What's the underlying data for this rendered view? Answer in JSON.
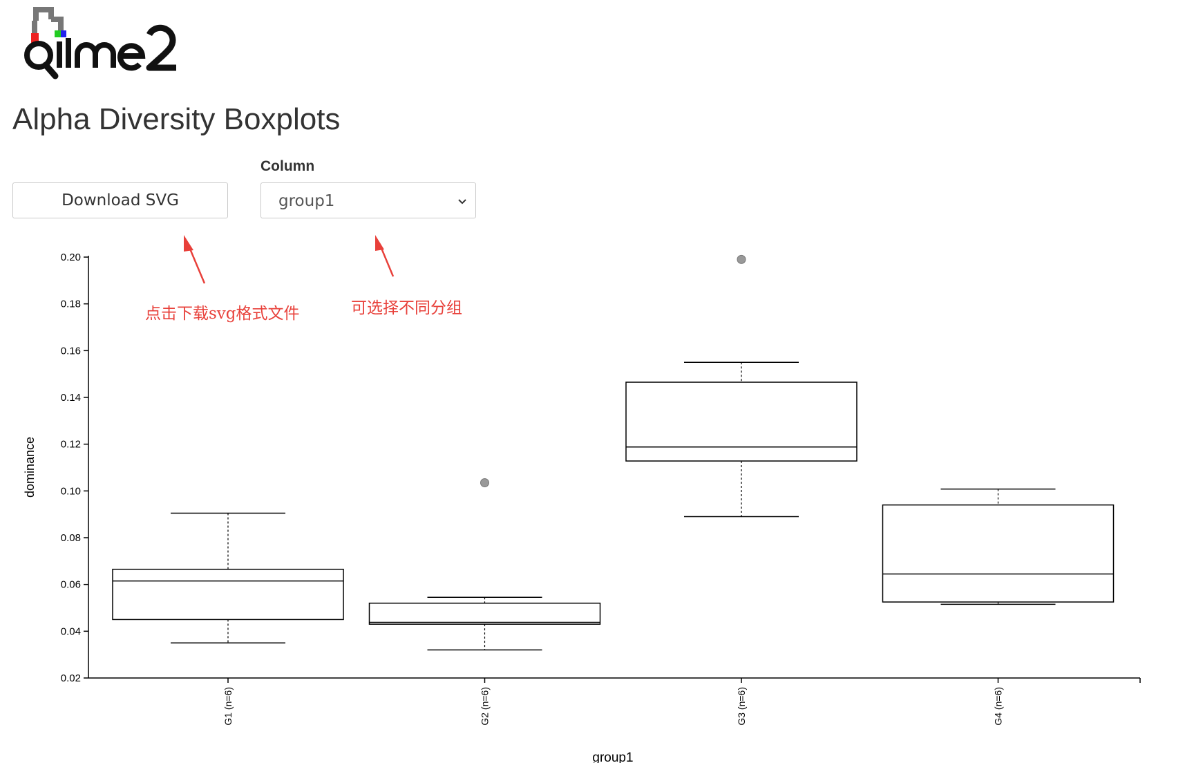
{
  "header": {
    "logo_text": "qiime2",
    "title": "Alpha Diversity Boxplots"
  },
  "controls": {
    "download_label": "Download SVG",
    "column_label": "Column",
    "column_value": "group1"
  },
  "annotations": {
    "download_note": "点击下载svg格式文件",
    "select_note": "可选择不同分组",
    "color": "#e8403a"
  },
  "chart_data": {
    "type": "boxplot",
    "xlabel": "group1",
    "ylabel": "dominance",
    "ylim": [
      0.02,
      0.2
    ],
    "yticks": [
      "0.20",
      "0.18",
      "0.16",
      "0.14",
      "0.12",
      "0.10",
      "0.08",
      "0.06",
      "0.04",
      "0.02"
    ],
    "groups": [
      {
        "label": "G1 (n=6)",
        "whisker_low": 0.035,
        "q1": 0.045,
        "median": 0.0615,
        "q3": 0.0665,
        "whisker_high": 0.0905,
        "outliers": []
      },
      {
        "label": "G2 (n=6)",
        "whisker_low": 0.032,
        "q1": 0.043,
        "median": 0.0438,
        "q3": 0.052,
        "whisker_high": 0.0545,
        "outliers": [
          0.1035
        ]
      },
      {
        "label": "G3 (n=6)",
        "whisker_low": 0.089,
        "q1": 0.1128,
        "median": 0.1188,
        "q3": 0.1465,
        "whisker_high": 0.155,
        "outliers": [
          0.199
        ]
      },
      {
        "label": "G4 (n=6)",
        "whisker_low": 0.0515,
        "q1": 0.0525,
        "median": 0.0645,
        "q3": 0.094,
        "whisker_high": 0.1008,
        "outliers": []
      }
    ]
  }
}
